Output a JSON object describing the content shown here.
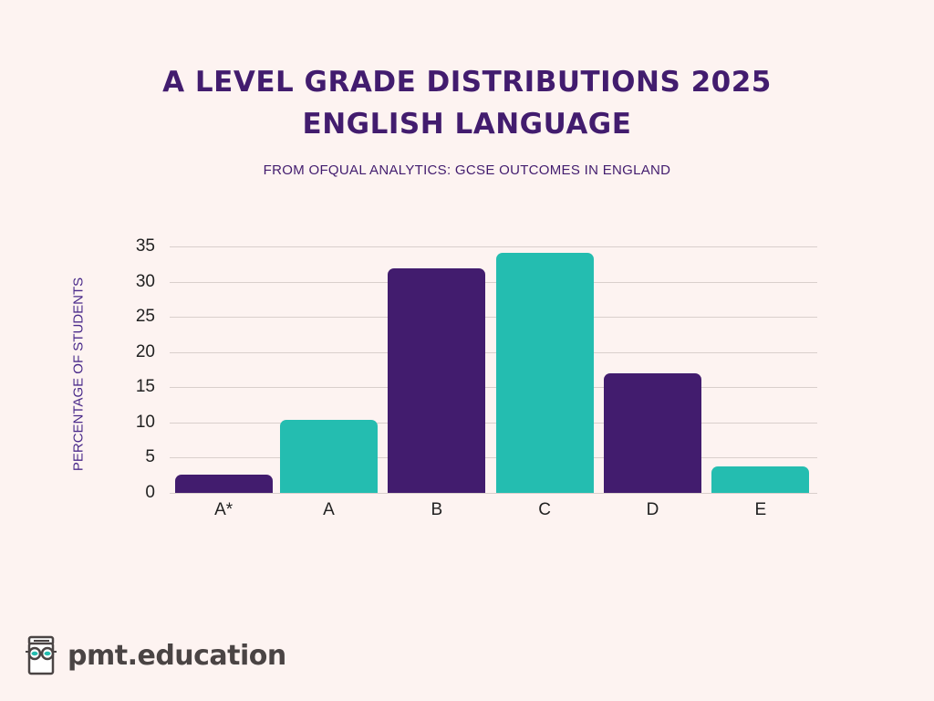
{
  "header": {
    "title_line1": "A LEVEL GRADE DISTRIBUTIONS 2025",
    "title_line2": "ENGLISH LANGUAGE",
    "subtitle": "FROM OFQUAL ANALYTICS: GCSE OUTCOMES IN ENGLAND"
  },
  "colors": {
    "background": "#fdf3f1",
    "purple": "#421c6e",
    "teal": "#24bdb0",
    "gridline": "#d9cfcc"
  },
  "chart_data": {
    "type": "bar",
    "title": "A LEVEL GRADE DISTRIBUTIONS 2025 ENGLISH LANGUAGE",
    "subtitle": "FROM OFQUAL ANALYTICS: GCSE OUTCOMES IN ENGLAND",
    "xlabel": "",
    "ylabel": "PERCENTAGE OF STUDENTS",
    "categories": [
      "A*",
      "A",
      "B",
      "C",
      "D",
      "E"
    ],
    "values": [
      2.6,
      10.4,
      31.9,
      34.1,
      17.0,
      3.8
    ],
    "bar_colors": [
      "#421c6e",
      "#24bdb0",
      "#421c6e",
      "#24bdb0",
      "#421c6e",
      "#24bdb0"
    ],
    "ylim": [
      0,
      35
    ],
    "yticks": [
      0,
      5,
      10,
      15,
      20,
      25,
      30,
      35
    ],
    "grid": true,
    "legend": "none"
  },
  "branding": {
    "logo_icon": "book-with-glasses-icon",
    "logo_text": "pmt.education"
  }
}
